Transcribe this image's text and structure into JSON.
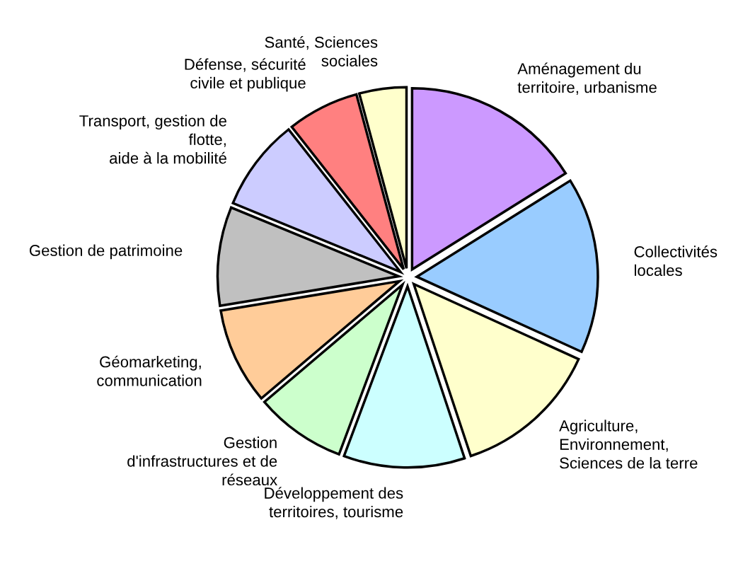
{
  "chart_data": {
    "type": "pie",
    "categories": [
      "Aménagement du\nterritoire, urbanisme",
      "Collectivités\nlocales",
      "Agriculture,\nEnvironnement,\nSciences de la terre",
      "Développement des\nterritoires, tourisme",
      "Gestion\nd'infrastructures et de\nréseaux",
      "Géomarketing,\ncommunication",
      "Gestion de patrimoine",
      "Transport, gestion de\nflotte,\naide à la mobilité",
      "Défense, sécurité\ncivile et publique",
      "Santé, Sciences\nsociales"
    ],
    "values": [
      16.1,
      15.7,
      13.1,
      10.8,
      8.1,
      8.6,
      8.8,
      8.2,
      6.4,
      4.2
    ],
    "colors": [
      "#cc99ff",
      "#99ccff",
      "#ffffcc",
      "#ccffff",
      "#ccffcc",
      "#ffcc99",
      "#c0c0c0",
      "#ccccff",
      "#ff8080",
      "#ffffcc"
    ],
    "legend": false
  }
}
